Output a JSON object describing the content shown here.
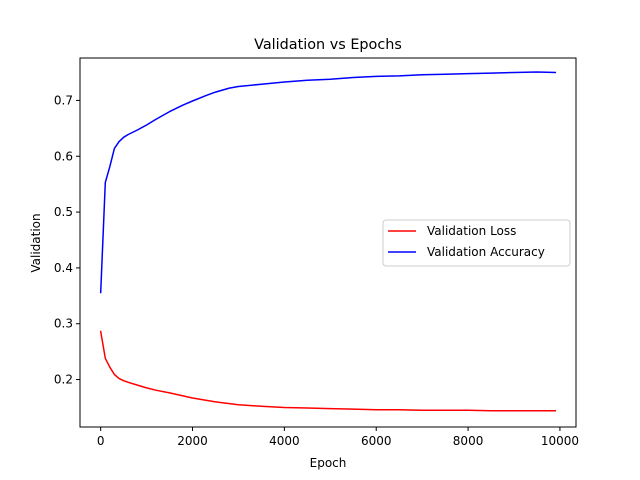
{
  "chart_data": {
    "type": "line",
    "title": "Validation vs Epochs",
    "xlabel": "Epoch",
    "ylabel": "Validation",
    "xlim": [
      -450,
      10350
    ],
    "ylim": [
      0.115,
      0.776
    ],
    "xticks": [
      0,
      2000,
      4000,
      6000,
      8000,
      10000
    ],
    "yticks": [
      0.2,
      0.3,
      0.4,
      0.5,
      0.6,
      0.7
    ],
    "grid": false,
    "legend": "center-right",
    "series": [
      {
        "name": "Validation Loss",
        "color": "#ff0000",
        "x": [
          0,
          100,
          200,
          300,
          400,
          500,
          600,
          800,
          1000,
          1200,
          1500,
          2000,
          2500,
          3000,
          3500,
          4000,
          4500,
          5000,
          5500,
          6000,
          6500,
          7000,
          7500,
          8000,
          8500,
          9000,
          9500,
          9900
        ],
        "y": [
          0.286,
          0.238,
          0.222,
          0.209,
          0.202,
          0.198,
          0.195,
          0.19,
          0.185,
          0.181,
          0.176,
          0.167,
          0.16,
          0.155,
          0.152,
          0.15,
          0.149,
          0.148,
          0.147,
          0.146,
          0.146,
          0.145,
          0.145,
          0.145,
          0.144,
          0.144,
          0.144,
          0.144
        ]
      },
      {
        "name": "Validation Accuracy",
        "color": "#0000ff",
        "x": [
          0,
          100,
          200,
          300,
          400,
          500,
          600,
          800,
          1000,
          1200,
          1500,
          1800,
          2000,
          2300,
          2500,
          2800,
          3000,
          3500,
          4000,
          4500,
          5000,
          5500,
          6000,
          6500,
          7000,
          7500,
          8000,
          8500,
          9000,
          9500,
          9900
        ],
        "y": [
          0.356,
          0.553,
          0.582,
          0.614,
          0.626,
          0.634,
          0.639,
          0.647,
          0.656,
          0.666,
          0.68,
          0.692,
          0.699,
          0.709,
          0.715,
          0.722,
          0.725,
          0.729,
          0.733,
          0.736,
          0.738,
          0.741,
          0.743,
          0.744,
          0.746,
          0.747,
          0.748,
          0.749,
          0.75,
          0.751,
          0.75
        ]
      }
    ]
  }
}
